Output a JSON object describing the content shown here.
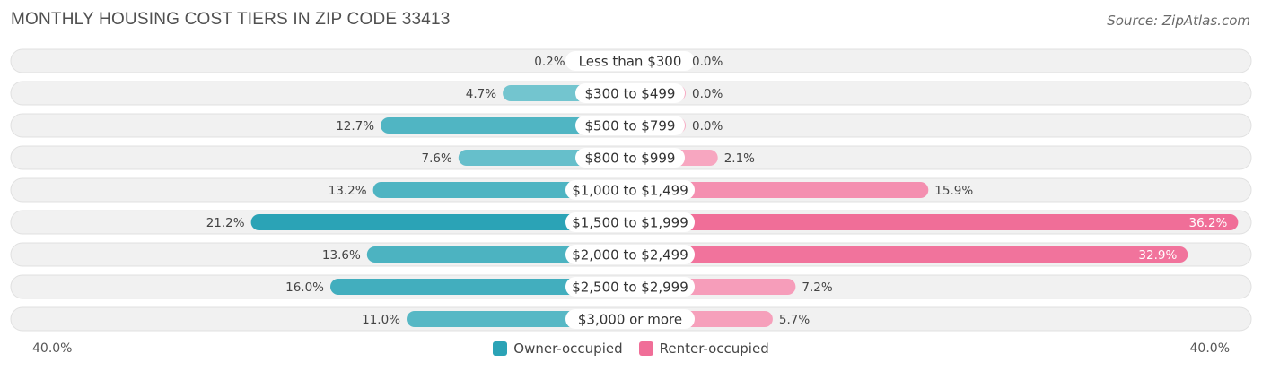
{
  "header": {
    "title": "MONTHLY HOUSING COST TIERS IN ZIP CODE 33413",
    "source": "Source: ZipAtlas.com"
  },
  "axis": {
    "left_label": "40.0%",
    "right_label": "40.0%"
  },
  "colors": {
    "owner_light": "#87CFD6",
    "owner_dark": "#2BA3B6",
    "renter_light": "#F7A9C2",
    "renter_dark": "#F06E98",
    "row_bg": "#F1F1F1",
    "row_border": "#E0E0E0"
  },
  "legend": {
    "owner": "Owner-occupied",
    "renter": "Renter-occupied"
  },
  "chart_data": {
    "type": "bar",
    "orientation": "horizontal-diverging",
    "max": 40.0,
    "categories": [
      "Less than $300",
      "$300 to $499",
      "$500 to $799",
      "$800 to $999",
      "$1,000 to $1,499",
      "$1,500 to $1,999",
      "$2,000 to $2,499",
      "$2,500 to $2,999",
      "$3,000 or more"
    ],
    "series": [
      {
        "name": "Owner-occupied",
        "values": [
          0.2,
          4.7,
          12.7,
          7.6,
          13.2,
          21.2,
          13.6,
          16.0,
          11.0
        ],
        "labels": [
          "0.2%",
          "4.7%",
          "12.7%",
          "7.6%",
          "13.2%",
          "21.2%",
          "13.6%",
          "16.0%",
          "11.0%"
        ]
      },
      {
        "name": "Renter-occupied",
        "values": [
          0.0,
          0.0,
          0.0,
          2.1,
          15.9,
          36.2,
          32.9,
          7.2,
          5.7
        ],
        "labels": [
          "0.0%",
          "0.0%",
          "0.0%",
          "2.1%",
          "15.9%",
          "36.2%",
          "32.9%",
          "7.2%",
          "5.7%"
        ]
      }
    ]
  }
}
